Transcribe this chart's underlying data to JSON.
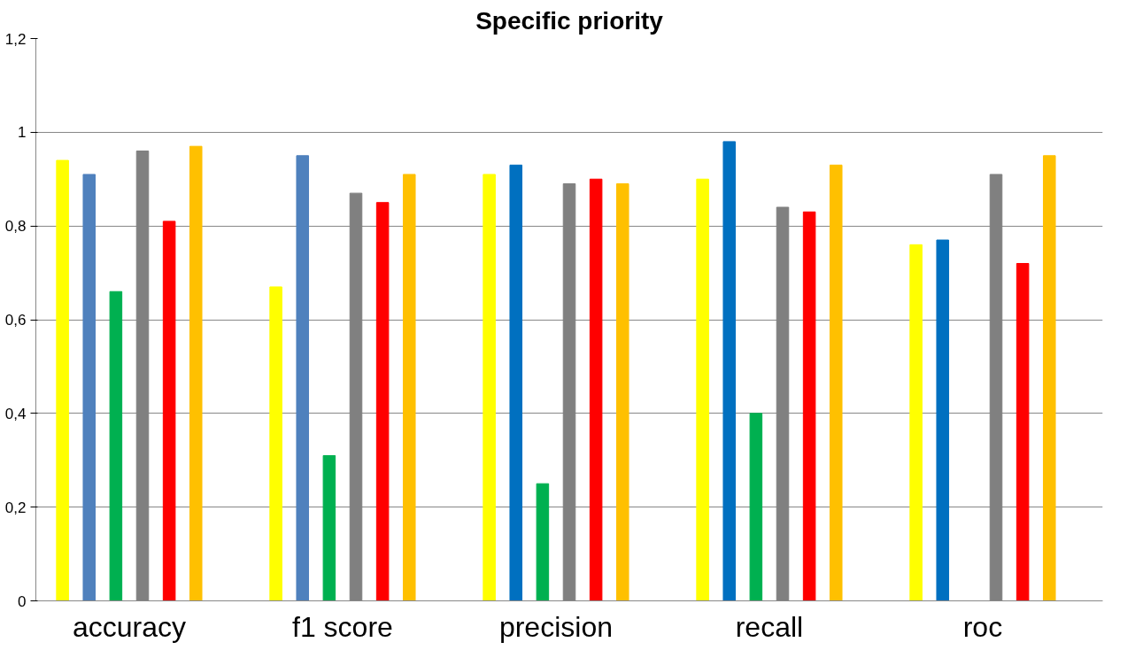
{
  "chart_data": {
    "type": "bar",
    "title": "Specific priority",
    "categories": [
      "accuracy",
      "f1 score",
      "precision",
      "recall",
      "roc"
    ],
    "series": [
      {
        "color": "#ffff00",
        "values": [
          0.94,
          0.67,
          0.91,
          0.9,
          0.76
        ]
      },
      {
        "color": "#0070c0",
        "colors": [
          "#4f81bd",
          "#4f81bd",
          "#0070c0",
          "#0070c0",
          "#0070c0"
        ],
        "values": [
          0.91,
          0.95,
          0.93,
          0.98,
          0.77
        ]
      },
      {
        "color": "#00b050",
        "values": [
          0.66,
          0.31,
          0.25,
          0.4,
          null
        ]
      },
      {
        "color": "#808080",
        "values": [
          0.96,
          0.87,
          0.89,
          0.84,
          0.91
        ]
      },
      {
        "color": "#ff0000",
        "values": [
          0.81,
          0.85,
          0.9,
          0.83,
          0.72
        ]
      },
      {
        "color": "#ffc000",
        "values": [
          0.97,
          0.91,
          0.89,
          0.93,
          0.95
        ]
      }
    ],
    "ylim": [
      0,
      1.2
    ],
    "yticks": [
      0,
      {
        "value": 0.2,
        "label": "0,2"
      },
      {
        "value": 0.4,
        "label": "0,4"
      },
      {
        "value": 0.6,
        "label": "0,6"
      },
      {
        "value": 0.8,
        "label": "0,8"
      },
      1,
      {
        "value": 1.2,
        "label": "1,2"
      }
    ],
    "grid": "y"
  }
}
